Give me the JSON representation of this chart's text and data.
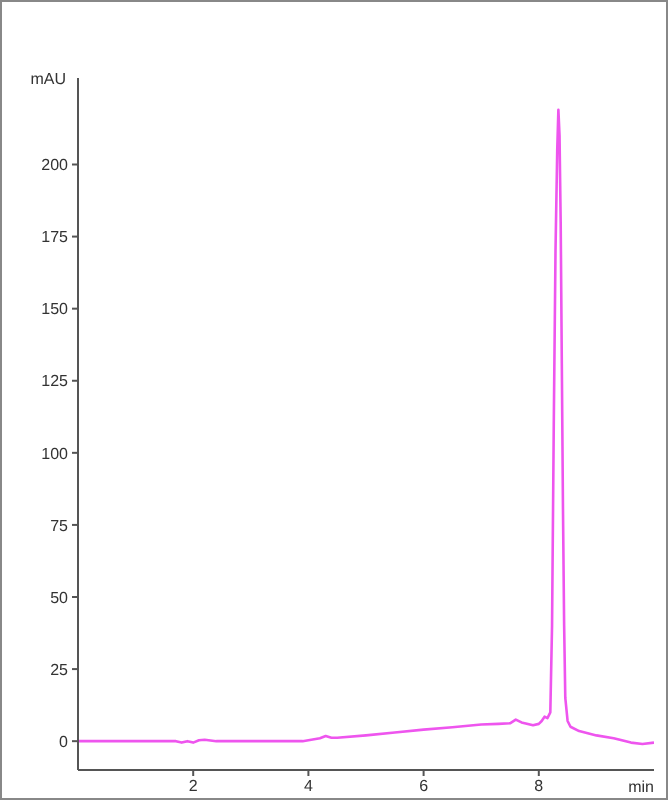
{
  "chart_data": {
    "type": "line",
    "xlabel": "min",
    "ylabel": "mAU",
    "xlim": [
      0,
      10
    ],
    "ylim": [
      -10,
      230
    ],
    "xticks": [
      2,
      4,
      6,
      8
    ],
    "yticks": [
      0,
      25,
      50,
      75,
      100,
      125,
      150,
      175,
      200
    ],
    "marker": "none",
    "line_style": "solid",
    "series": [
      {
        "color": "#ee55ee",
        "x": [
          0,
          0.5,
          1,
          1.5,
          1.7,
          1.8,
          1.9,
          2.0,
          2.1,
          2.2,
          2.4,
          3,
          3.5,
          3.9,
          4.2,
          4.3,
          4.4,
          4.5,
          5,
          5.5,
          6,
          6.5,
          7,
          7.3,
          7.5,
          7.6,
          7.7,
          7.9,
          8.0,
          8.05,
          8.1,
          8.15,
          8.2,
          8.23,
          8.26,
          8.29,
          8.32,
          8.34,
          8.36,
          8.38,
          8.4,
          8.42,
          8.44,
          8.46,
          8.5,
          8.55,
          8.7,
          9,
          9.3,
          9.6,
          9.8,
          10
        ],
        "values": [
          0,
          0,
          0,
          0,
          0,
          -0.5,
          0,
          -0.5,
          0.3,
          0.5,
          0,
          0,
          0,
          0,
          1,
          1.8,
          1.2,
          1.2,
          2,
          3,
          4,
          4.8,
          5.8,
          6,
          6.2,
          7.5,
          6.5,
          5.5,
          6,
          7,
          8.5,
          8,
          10,
          40,
          110,
          170,
          205,
          219,
          210,
          180,
          130,
          80,
          40,
          15,
          7,
          5,
          3.5,
          2,
          1,
          -0.5,
          -1,
          -0.5
        ]
      }
    ]
  }
}
